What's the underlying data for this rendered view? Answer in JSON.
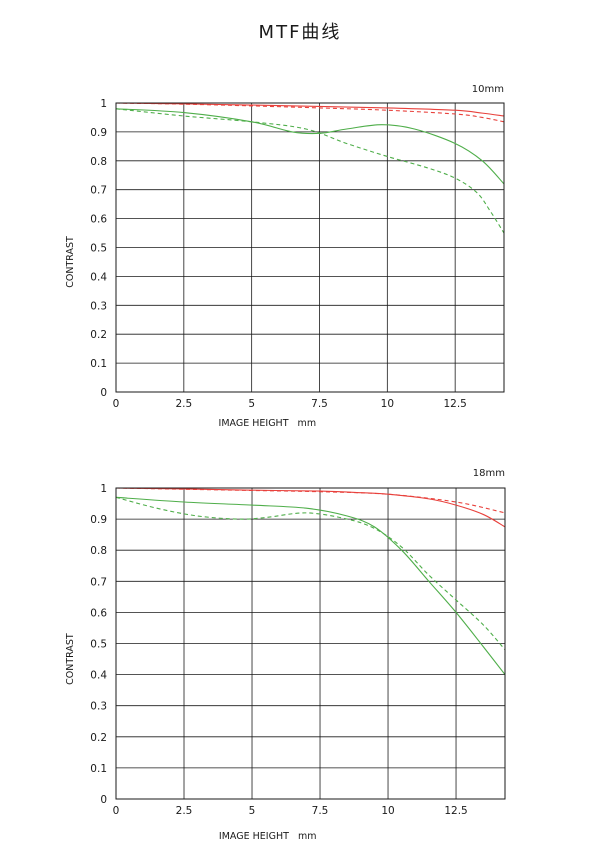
{
  "page": {
    "title": "MTF曲线"
  },
  "chart_data": [
    {
      "type": "line",
      "focal_label": "10mm",
      "xlabel": "IMAGE HEIGHT   mm",
      "ylabel": "CONTRAST",
      "xlim": [
        0,
        14.3
      ],
      "ylim": [
        0,
        1
      ],
      "xticks": [
        0,
        2.5,
        5,
        7.5,
        10,
        12.5
      ],
      "xtick_labels": [
        "0",
        "2.5",
        "5",
        "7.5",
        "10",
        "12.5"
      ],
      "yticks": [
        0,
        0.1,
        0.2,
        0.3,
        0.4,
        0.5,
        0.6,
        0.7,
        0.8,
        0.9,
        1
      ],
      "ytick_labels": [
        "0",
        "0.1",
        "0.2",
        "0.3",
        "0.4",
        "0.5",
        "0.6",
        "0.7",
        "0.8",
        "0.9",
        "1"
      ],
      "grid": true,
      "series": [
        {
          "color": "#e8413c",
          "dash": false,
          "points": [
            [
              0,
              1.0
            ],
            [
              2.5,
              0.997
            ],
            [
              5,
              0.993
            ],
            [
              7.5,
              0.988
            ],
            [
              10,
              0.983
            ],
            [
              12.5,
              0.975
            ],
            [
              13.5,
              0.965
            ],
            [
              14.3,
              0.955
            ]
          ]
        },
        {
          "color": "#e8413c",
          "dash": true,
          "points": [
            [
              0,
              1.0
            ],
            [
              2.5,
              0.996
            ],
            [
              5,
              0.99
            ],
            [
              7.5,
              0.983
            ],
            [
              10,
              0.975
            ],
            [
              12.5,
              0.962
            ],
            [
              13.5,
              0.95
            ],
            [
              14.3,
              0.935
            ]
          ]
        },
        {
          "color": "#4fae4a",
          "dash": false,
          "points": [
            [
              0,
              0.98
            ],
            [
              2.5,
              0.967
            ],
            [
              5,
              0.935
            ],
            [
              6.5,
              0.9
            ],
            [
              7.5,
              0.895
            ],
            [
              8.5,
              0.91
            ],
            [
              9.8,
              0.925
            ],
            [
              11,
              0.91
            ],
            [
              12.5,
              0.86
            ],
            [
              13.5,
              0.8
            ],
            [
              14.3,
              0.72
            ]
          ]
        },
        {
          "color": "#4fae4a",
          "dash": true,
          "points": [
            [
              0,
              0.98
            ],
            [
              2.5,
              0.955
            ],
            [
              5,
              0.935
            ],
            [
              7,
              0.91
            ],
            [
              8.5,
              0.86
            ],
            [
              10,
              0.815
            ],
            [
              11.5,
              0.775
            ],
            [
              12.5,
              0.74
            ],
            [
              13.3,
              0.69
            ],
            [
              13.8,
              0.625
            ],
            [
              14.3,
              0.55
            ]
          ]
        }
      ]
    },
    {
      "type": "line",
      "focal_label": "18mm",
      "xlabel": "IMAGE HEIGHT   mm",
      "ylabel": "CONTRAST",
      "xlim": [
        0,
        14.3
      ],
      "ylim": [
        0,
        1
      ],
      "xticks": [
        0,
        2.5,
        5,
        7.5,
        10,
        12.5
      ],
      "xtick_labels": [
        "0",
        "2.5",
        "5",
        "7.5",
        "10",
        "12.5"
      ],
      "yticks": [
        0,
        0.1,
        0.2,
        0.3,
        0.4,
        0.5,
        0.6,
        0.7,
        0.8,
        0.9,
        1
      ],
      "ytick_labels": [
        "0",
        "0.1",
        "0.2",
        "0.3",
        "0.4",
        "0.5",
        "0.6",
        "0.7",
        "0.8",
        "0.9",
        "1"
      ],
      "grid": true,
      "series": [
        {
          "color": "#e8413c",
          "dash": false,
          "points": [
            [
              0,
              1.0
            ],
            [
              2.5,
              0.997
            ],
            [
              5,
              0.993
            ],
            [
              7.5,
              0.99
            ],
            [
              9,
              0.985
            ],
            [
              10,
              0.98
            ],
            [
              11.5,
              0.965
            ],
            [
              12.5,
              0.945
            ],
            [
              13.5,
              0.915
            ],
            [
              14.3,
              0.875
            ]
          ]
        },
        {
          "color": "#e8413c",
          "dash": true,
          "points": [
            [
              0,
              1.0
            ],
            [
              2.5,
              0.996
            ],
            [
              5,
              0.992
            ],
            [
              7.5,
              0.988
            ],
            [
              10,
              0.98
            ],
            [
              12.5,
              0.955
            ],
            [
              14.3,
              0.92
            ]
          ]
        },
        {
          "color": "#4fae4a",
          "dash": false,
          "points": [
            [
              0,
              0.97
            ],
            [
              2.5,
              0.955
            ],
            [
              5,
              0.945
            ],
            [
              7,
              0.935
            ],
            [
              8.5,
              0.91
            ],
            [
              9.5,
              0.875
            ],
            [
              10.5,
              0.8
            ],
            [
              11.5,
              0.7
            ],
            [
              12.5,
              0.6
            ],
            [
              13.5,
              0.49
            ],
            [
              14.3,
              0.4
            ]
          ]
        },
        {
          "color": "#4fae4a",
          "dash": true,
          "points": [
            [
              0,
              0.97
            ],
            [
              1.5,
              0.935
            ],
            [
              3,
              0.91
            ],
            [
              4.5,
              0.9
            ],
            [
              5.5,
              0.905
            ],
            [
              7,
              0.92
            ],
            [
              8.5,
              0.9
            ],
            [
              9.5,
              0.87
            ],
            [
              10.5,
              0.81
            ],
            [
              11.5,
              0.72
            ],
            [
              12.5,
              0.64
            ],
            [
              13.5,
              0.56
            ],
            [
              14.3,
              0.48
            ]
          ]
        }
      ]
    }
  ]
}
